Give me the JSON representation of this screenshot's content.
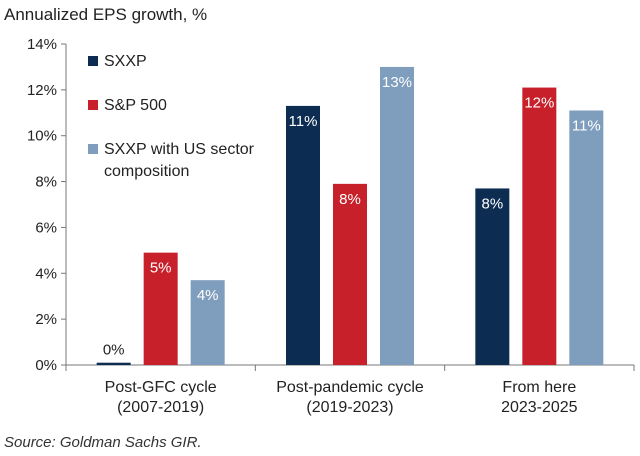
{
  "chart_data": {
    "type": "bar",
    "title": "Annualized EPS growth, %",
    "categories": [
      [
        "Post-GFC cycle",
        "(2007-2019)"
      ],
      [
        "Post-pandemic cycle",
        "(2019-2023)"
      ],
      [
        "From here",
        "2023-2025"
      ]
    ],
    "series": [
      {
        "name": "SXXP",
        "color": "#0d2c52",
        "values": [
          0.1,
          11.3,
          7.7
        ],
        "labels": [
          "0%",
          "11%",
          "8%"
        ],
        "label_color": "#ffffff"
      },
      {
        "name": "S&P 500",
        "color": "#c8202a",
        "values": [
          4.9,
          7.9,
          12.1
        ],
        "labels": [
          "5%",
          "8%",
          "12%"
        ],
        "label_color": "#ffffff"
      },
      {
        "name": "SXXP with US sector composition",
        "legend_lines": [
          "SXXP with US sector",
          "composition"
        ],
        "color": "#7f9dbd",
        "values": [
          3.7,
          13.0,
          11.1
        ],
        "labels": [
          "4%",
          "13%",
          "11%"
        ],
        "label_color": "#ffffff"
      }
    ],
    "ylim": [
      0,
      14
    ],
    "yticks": [
      0,
      2,
      4,
      6,
      8,
      10,
      12,
      14
    ],
    "ytick_labels": [
      "0%",
      "2%",
      "4%",
      "6%",
      "8%",
      "10%",
      "12%",
      "14%"
    ],
    "xlabel": "",
    "ylabel": "",
    "legend": "top-left",
    "grid": false
  },
  "source": "Source: Goldman Sachs GIR."
}
